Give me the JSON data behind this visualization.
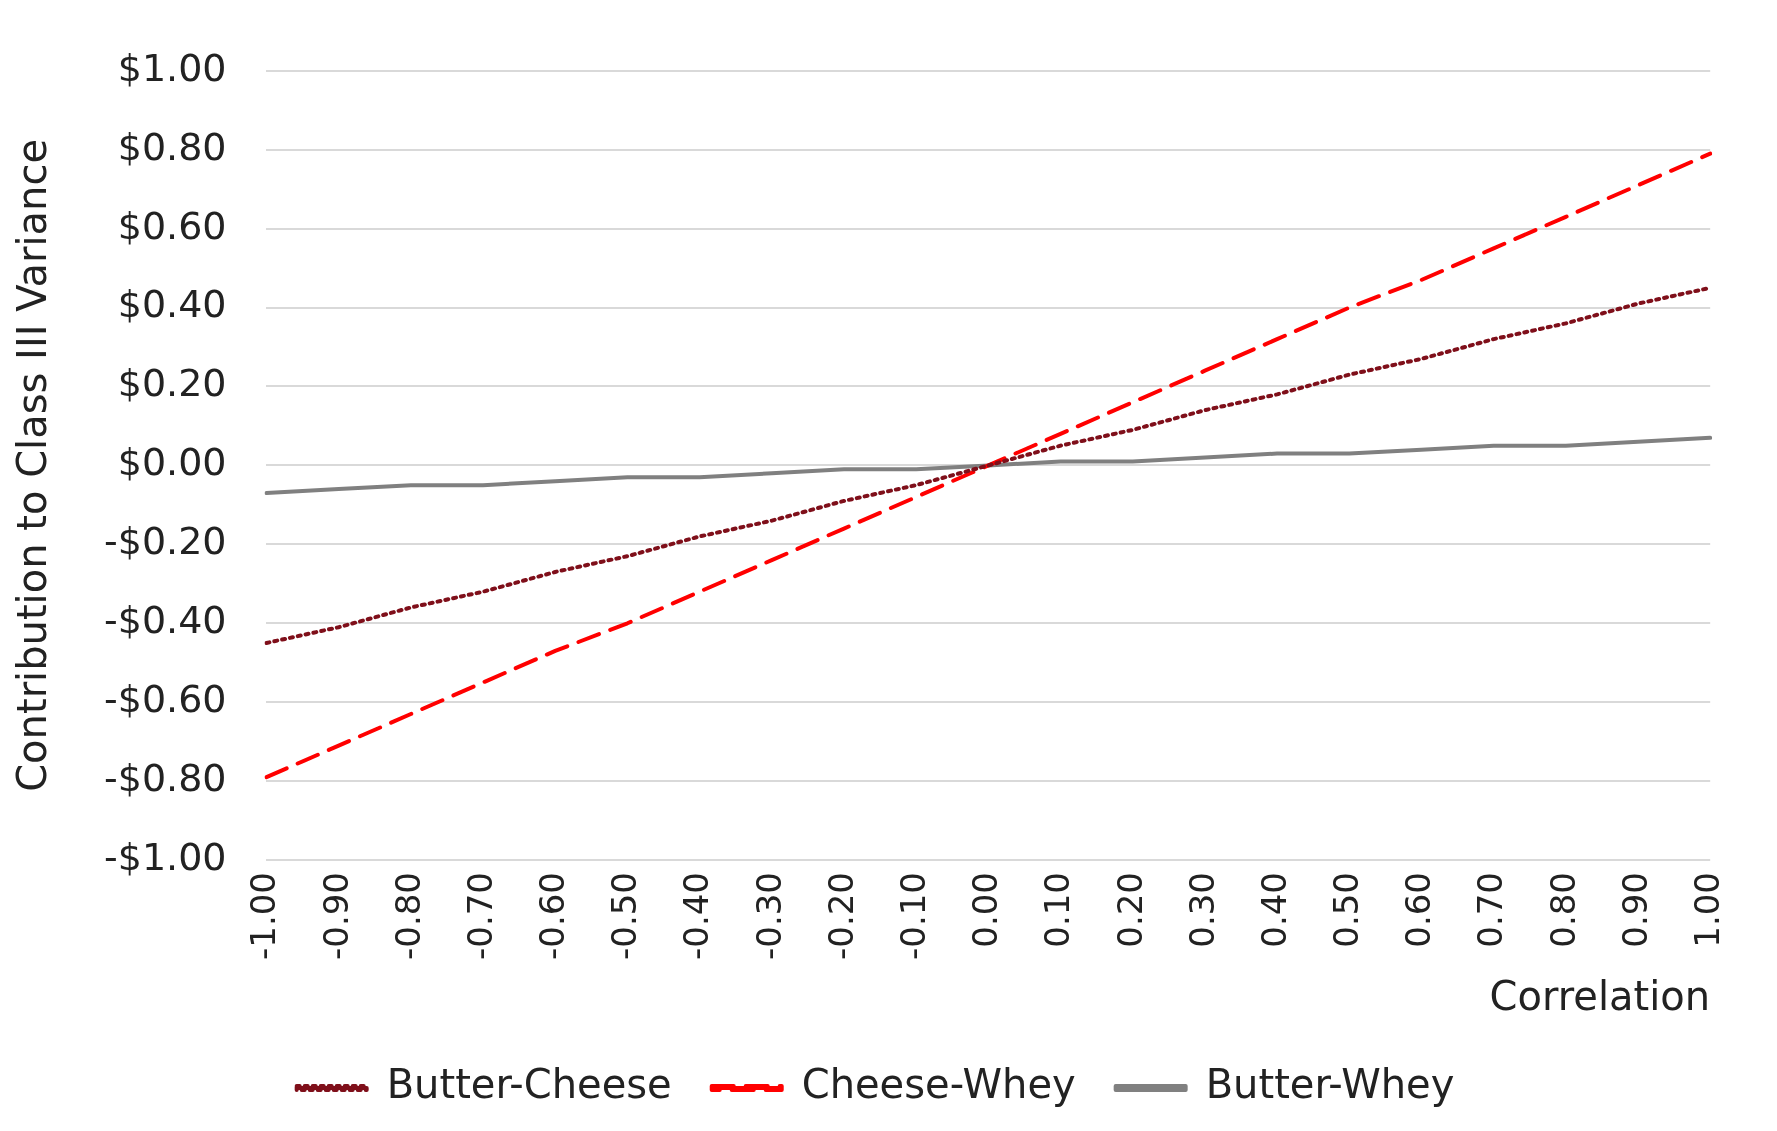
{
  "chart_data": {
    "type": "line",
    "xlabel": "Correlation",
    "ylabel": "Contribution to Class III Variance",
    "categories": [
      "-1.00",
      "-0.90",
      "-0.80",
      "-0.70",
      "-0.60",
      "-0.50",
      "-0.40",
      "-0.30",
      "-0.20",
      "-0.10",
      "0.00",
      "0.10",
      "0.20",
      "0.30",
      "0.40",
      "0.50",
      "0.60",
      "0.70",
      "0.80",
      "0.90",
      "1.00"
    ],
    "series": [
      {
        "name": "Butter-Cheese",
        "color": "#7f0f1a",
        "line_style": "dotted",
        "values": [
          -0.45,
          -0.41,
          -0.36,
          -0.32,
          -0.27,
          -0.23,
          -0.18,
          -0.14,
          -0.09,
          -0.05,
          0,
          0.05,
          0.09,
          0.14,
          0.18,
          0.23,
          0.27,
          0.32,
          0.36,
          0.41,
          0.45
        ]
      },
      {
        "name": "Cheese-Whey",
        "color": "#ff0000",
        "line_style": "dashed",
        "values": [
          -0.79,
          -0.71,
          -0.63,
          -0.55,
          -0.47,
          -0.4,
          -0.32,
          -0.24,
          -0.16,
          -0.08,
          0,
          0.08,
          0.16,
          0.24,
          0.32,
          0.4,
          0.47,
          0.55,
          0.63,
          0.71,
          0.79
        ]
      },
      {
        "name": "Butter-Whey",
        "color": "#808080",
        "line_style": "solid",
        "values": [
          -0.07,
          -0.06,
          -0.05,
          -0.05,
          -0.04,
          -0.03,
          -0.03,
          -0.02,
          -0.01,
          -0.01,
          0,
          0.01,
          0.01,
          0.02,
          0.03,
          0.03,
          0.04,
          0.05,
          0.05,
          0.06,
          0.07
        ]
      }
    ],
    "ylim": [
      -1,
      1
    ],
    "yticks": [
      {
        "value": -1,
        "label": "-$1.00"
      },
      {
        "value": -0.8,
        "label": "-$0.80"
      },
      {
        "value": -0.6,
        "label": "-$0.60"
      },
      {
        "value": -0.4,
        "label": "-$0.40"
      },
      {
        "value": -0.2,
        "label": "-$0.20"
      },
      {
        "value": 0,
        "label": "$0.00"
      },
      {
        "value": 0.2,
        "label": "$0.20"
      },
      {
        "value": 0.4,
        "label": "$0.40"
      },
      {
        "value": 0.6,
        "label": "$0.60"
      },
      {
        "value": 0.8,
        "label": "$0.80"
      },
      {
        "value": 1,
        "label": "$1.00"
      }
    ],
    "grid": "y",
    "legend": "bottom",
    "marker": "none"
  }
}
